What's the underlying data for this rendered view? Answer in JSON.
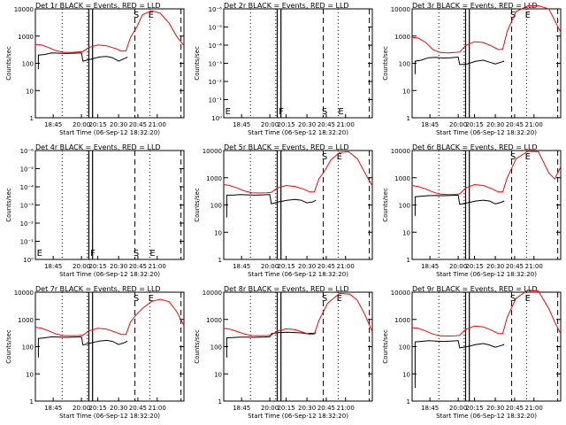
{
  "page": {
    "background": "#ffffff",
    "axis_color": "#000000",
    "events_color": "#000000",
    "lld_color": "#ff0000"
  },
  "chart_data": [
    {
      "type": "line",
      "title": "Det 1r BLACK = Events, RED = LLD",
      "xlabel": "Start Time (06-Sep-12 18:32:20)",
      "ylabel": "Counts/sec",
      "x_ticks": [
        "18:45",
        "20:00",
        "20:15",
        "20:30",
        "20:45",
        "21:00"
      ],
      "y_scale": "log",
      "y_ticks": [
        "1",
        "10",
        "100",
        "1000",
        "10000"
      ],
      "markers": [
        "S",
        "E"
      ],
      "series": [
        {
          "values": [
            [
              0,
              null,
              null
            ],
            [
              0.04,
              500,
              null
            ],
            [
              0.09,
              null,
              null
            ],
            [
              0.15,
              null,
              null
            ],
            [
              0.19,
              null,
              null
            ],
            [
              0.23,
              null,
              null
            ],
            [
              0.3,
              null,
              null
            ],
            [
              0.36,
              null,
              null
            ],
            [
              0.42,
              null,
              null
            ],
            [
              0.48,
              null,
              null
            ],
            [
              0.55,
              null,
              null
            ],
            [
              0.6,
              null,
              null
            ],
            [
              0.66,
              null,
              null
            ],
            [
              0.73,
              null,
              null
            ],
            [
              0.78,
              null,
              null
            ],
            [
              0.82,
              null,
              null
            ],
            [
              0.86,
              null,
              null
            ],
            [
              0.9,
              null,
              null
            ],
            [
              0.95,
              null,
              null
            ],
            [
              1.0,
              null,
              null
            ]
          ]
        }
      ]
    }
  ]
}
